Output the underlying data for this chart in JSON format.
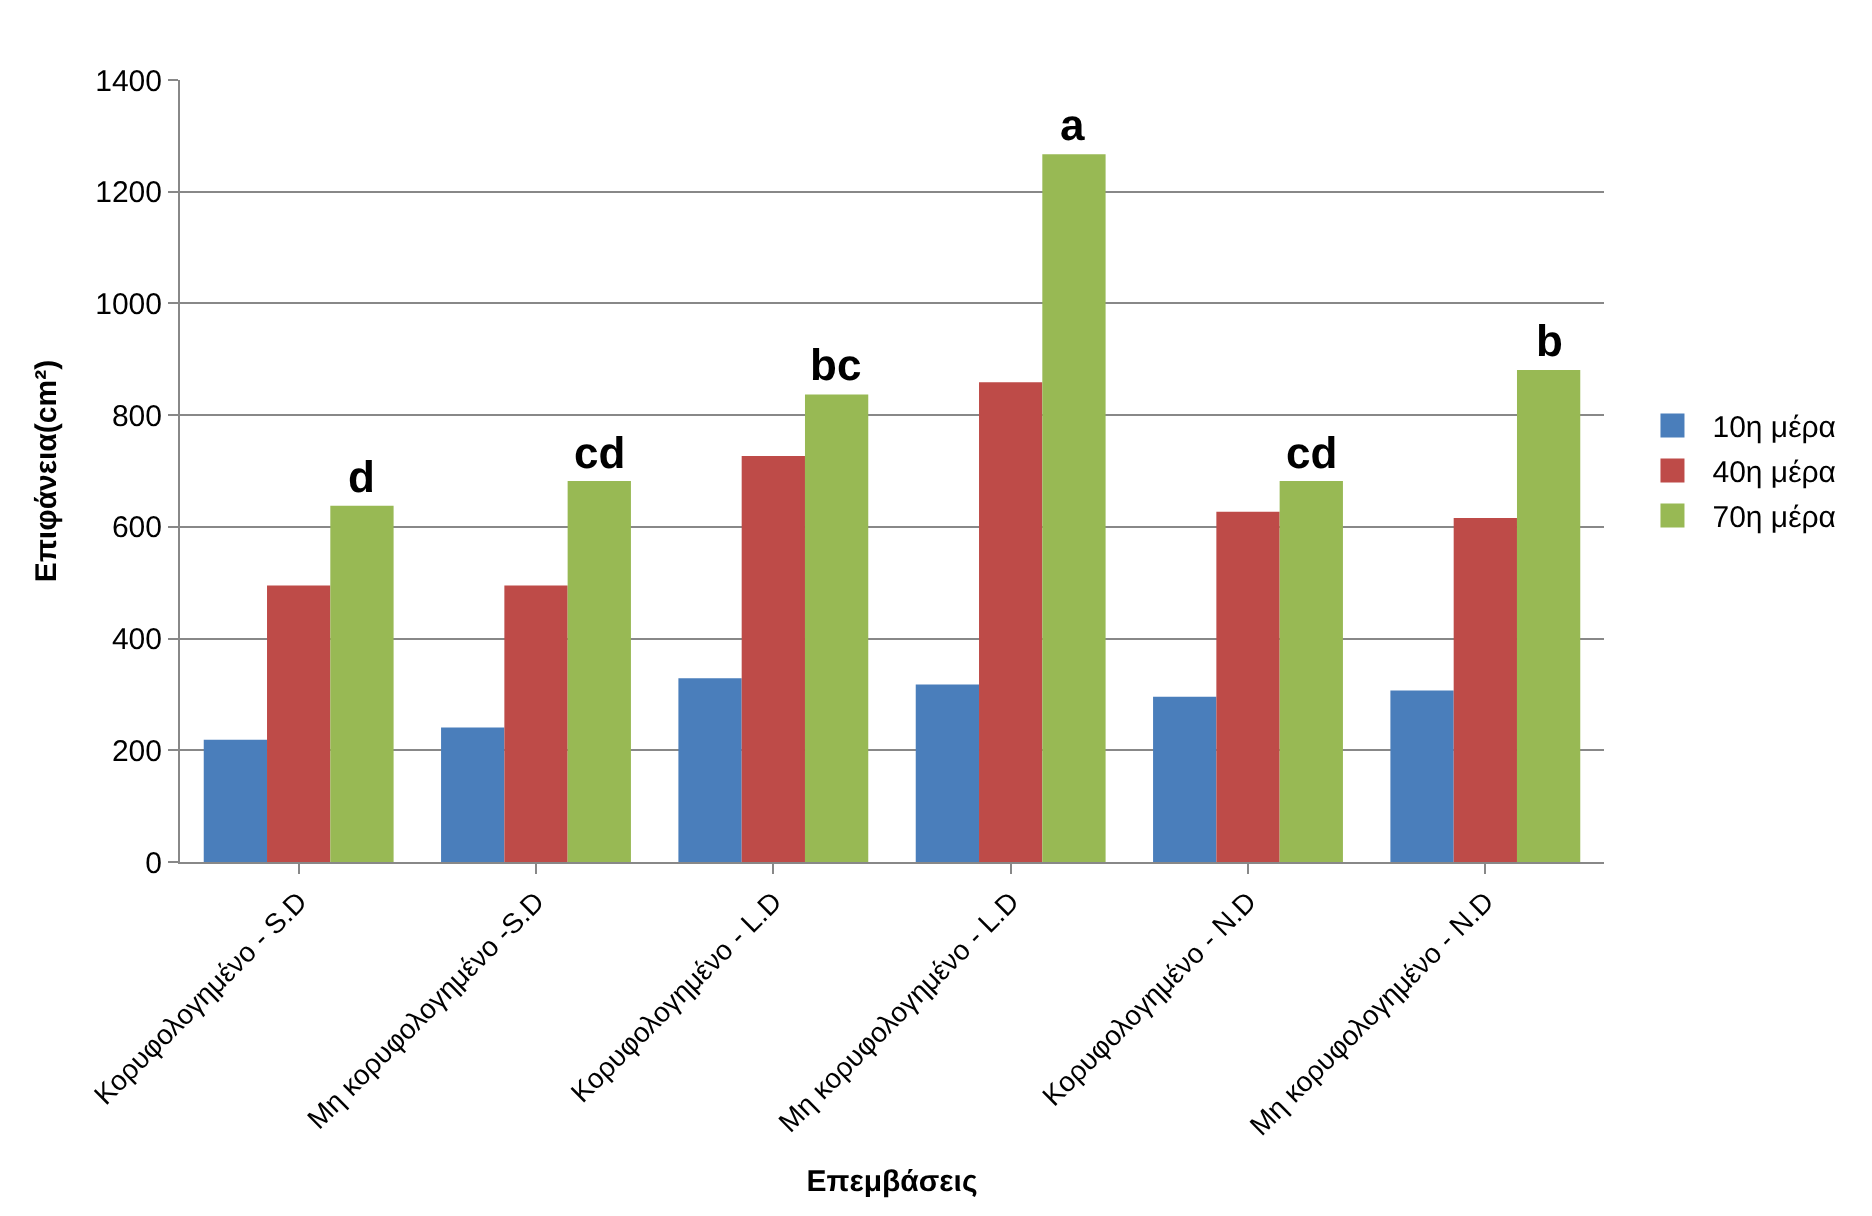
{
  "chart_data": {
    "type": "bar",
    "xlabel": "Επεμβάσεις",
    "ylabel": "Επιφάνεια(cm²)",
    "categories": [
      "Κορυφολογημένο - S.D",
      "Μη κορυφολογημένο -S.D",
      "Κορυφολογημένο - L.D",
      "Μη κορυφολογημένο - L.D",
      "Κορυφολογημένο - N.D",
      "Μη κορυφολογημένο - N.D"
    ],
    "series": [
      {
        "name": "10η μέρα",
        "color": "#4a7ebb",
        "values": [
          219,
          241,
          329,
          318,
          296,
          307
        ]
      },
      {
        "name": "40η μέρα",
        "color": "#be4b48",
        "values": [
          495,
          495,
          727,
          859,
          627,
          616
        ]
      },
      {
        "name": "70η μέρα",
        "color": "#98b954",
        "values": [
          638,
          682,
          837,
          1267,
          682,
          881
        ]
      }
    ],
    "ylim": [
      0,
      1400
    ],
    "yticks": [
      0,
      200,
      400,
      600,
      800,
      1000,
      1200,
      1400
    ],
    "grid": "y",
    "legend": "right",
    "annotations": [
      "d",
      "cd",
      "bc",
      "a",
      "cd",
      "b"
    ]
  }
}
